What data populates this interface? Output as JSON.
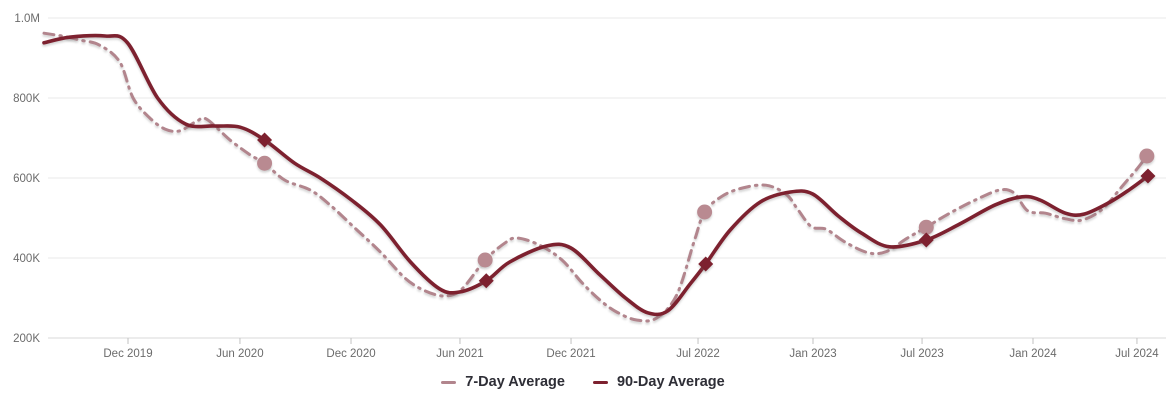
{
  "chart_data": {
    "type": "line",
    "title": "",
    "y_axis": {
      "min": 200000,
      "max": 1000000,
      "ticks": [
        {
          "label": "1.0M",
          "value_k": 1000
        },
        {
          "label": "800K",
          "value_k": 800
        },
        {
          "label": "600K",
          "value_k": 600
        },
        {
          "label": "400K",
          "value_k": 400
        },
        {
          "label": "200K",
          "value_k": 200
        }
      ]
    },
    "x_axis": {
      "ticks": [
        {
          "label": "Dec 2019",
          "pos": 0.0754
        },
        {
          "label": "Jun 2020",
          "pos": 0.1759
        },
        {
          "label": "Dec 2020",
          "pos": 0.2756
        },
        {
          "label": "Jun 2021",
          "pos": 0.3734
        },
        {
          "label": "Dec 2021",
          "pos": 0.4731
        },
        {
          "label": "Jul 2022",
          "pos": 0.5871
        },
        {
          "label": "Jan 2023",
          "pos": 0.6903
        },
        {
          "label": "Jul 2023",
          "pos": 0.7882
        },
        {
          "label": "Jan 2024",
          "pos": 0.8878
        },
        {
          "label": "Jul 2024",
          "pos": 0.9811
        }
      ]
    },
    "values_note": "points are [fraction-across-plot, value in thousands] estimated from pixels",
    "series": [
      {
        "name": "7-Day Average",
        "line_style": "dash-dot",
        "color": "#b2858d",
        "marker": "circle",
        "marker_color": "#b98a91",
        "points": [
          [
            0.0,
            962
          ],
          [
            0.016,
            955
          ],
          [
            0.032,
            945
          ],
          [
            0.05,
            932
          ],
          [
            0.068,
            890
          ],
          [
            0.08,
            800
          ],
          [
            0.095,
            750
          ],
          [
            0.109,
            722
          ],
          [
            0.122,
            718
          ],
          [
            0.137,
            742
          ],
          [
            0.146,
            747
          ],
          [
            0.167,
            695
          ],
          [
            0.185,
            658
          ],
          [
            0.198,
            637
          ],
          [
            0.216,
            595
          ],
          [
            0.239,
            570
          ],
          [
            0.257,
            532
          ],
          [
            0.279,
            475
          ],
          [
            0.302,
            415
          ],
          [
            0.324,
            350
          ],
          [
            0.342,
            318
          ],
          [
            0.36,
            305
          ],
          [
            0.375,
            322
          ],
          [
            0.396,
            395
          ],
          [
            0.414,
            438
          ],
          [
            0.425,
            450
          ],
          [
            0.445,
            432
          ],
          [
            0.465,
            395
          ],
          [
            0.483,
            338
          ],
          [
            0.499,
            295
          ],
          [
            0.514,
            265
          ],
          [
            0.532,
            245
          ],
          [
            0.55,
            250
          ],
          [
            0.568,
            308
          ],
          [
            0.584,
            445
          ],
          [
            0.593,
            515
          ],
          [
            0.609,
            555
          ],
          [
            0.627,
            575
          ],
          [
            0.648,
            582
          ],
          [
            0.666,
            560
          ],
          [
            0.677,
            520
          ],
          [
            0.689,
            478
          ],
          [
            0.702,
            472
          ],
          [
            0.719,
            440
          ],
          [
            0.74,
            413
          ],
          [
            0.756,
            416
          ],
          [
            0.774,
            448
          ],
          [
            0.792,
            477
          ],
          [
            0.813,
            512
          ],
          [
            0.836,
            545
          ],
          [
            0.858,
            570
          ],
          [
            0.871,
            562
          ],
          [
            0.883,
            518
          ],
          [
            0.899,
            512
          ],
          [
            0.917,
            498
          ],
          [
            0.932,
            495
          ],
          [
            0.95,
            522
          ],
          [
            0.968,
            580
          ],
          [
            0.981,
            622
          ],
          [
            0.99,
            655
          ]
        ],
        "markers": [
          [
            0.198,
            637
          ],
          [
            0.396,
            395
          ],
          [
            0.593,
            515
          ],
          [
            0.792,
            477
          ],
          [
            0.99,
            655
          ]
        ]
      },
      {
        "name": "90-Day Average",
        "line_style": "solid",
        "color": "#7d212f",
        "marker": "diamond",
        "marker_color": "#7d212f",
        "points": [
          [
            0.0,
            938
          ],
          [
            0.023,
            952
          ],
          [
            0.055,
            955
          ],
          [
            0.075,
            938
          ],
          [
            0.102,
            800
          ],
          [
            0.127,
            735
          ],
          [
            0.153,
            730
          ],
          [
            0.176,
            727
          ],
          [
            0.198,
            695
          ],
          [
            0.225,
            637
          ],
          [
            0.248,
            600
          ],
          [
            0.276,
            545
          ],
          [
            0.302,
            483
          ],
          [
            0.329,
            390
          ],
          [
            0.355,
            323
          ],
          [
            0.373,
            315
          ],
          [
            0.397,
            343
          ],
          [
            0.418,
            390
          ],
          [
            0.451,
            430
          ],
          [
            0.473,
            425
          ],
          [
            0.499,
            358
          ],
          [
            0.522,
            300
          ],
          [
            0.542,
            263
          ],
          [
            0.56,
            268
          ],
          [
            0.58,
            335
          ],
          [
            0.594,
            385
          ],
          [
            0.616,
            470
          ],
          [
            0.643,
            540
          ],
          [
            0.67,
            565
          ],
          [
            0.69,
            560
          ],
          [
            0.713,
            505
          ],
          [
            0.734,
            462
          ],
          [
            0.759,
            428
          ],
          [
            0.792,
            445
          ],
          [
            0.822,
            485
          ],
          [
            0.854,
            533
          ],
          [
            0.878,
            553
          ],
          [
            0.894,
            545
          ],
          [
            0.917,
            512
          ],
          [
            0.934,
            510
          ],
          [
            0.957,
            540
          ],
          [
            0.975,
            572
          ],
          [
            0.991,
            605
          ]
        ],
        "markers": [
          [
            0.198,
            695
          ],
          [
            0.397,
            343
          ],
          [
            0.594,
            385
          ],
          [
            0.792,
            445
          ],
          [
            0.991,
            605
          ]
        ]
      }
    ],
    "legend_position": "bottom-center"
  },
  "colors": {
    "background": "#ffffff",
    "grid": "#e8e8e8",
    "axis_line": "#d9d9d9",
    "tick": "#c2c2c2",
    "axis_label": "#6b6b6b",
    "legend_text": "#2e2e36"
  }
}
